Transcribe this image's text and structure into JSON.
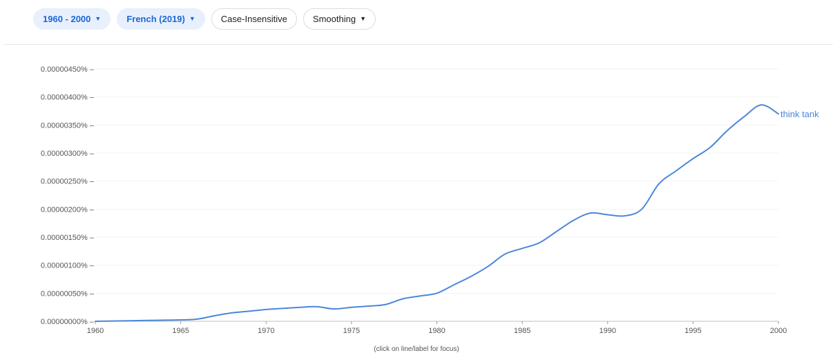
{
  "toolbar": {
    "year_range_label": "1960 - 2000",
    "corpus_label": "French (2019)",
    "case_label": "Case-Insensitive",
    "smoothing_label": "Smoothing"
  },
  "hint": "(click on line/label for focus)",
  "colors": {
    "line": "#4a86d9",
    "chip_fill": "#e8f0fe",
    "chip_text": "#1967d2"
  },
  "chart_data": {
    "type": "line",
    "title": "",
    "xlabel": "",
    "ylabel": "",
    "xlim": [
      1960,
      2000
    ],
    "ylim": [
      0,
      4.5e-06
    ],
    "y_tick_labels": [
      "0.00000000%",
      "0.00000050%",
      "0.00000100%",
      "0.00000150%",
      "0.00000200%",
      "0.00000250%",
      "0.00000300%",
      "0.00000350%",
      "0.00000400%",
      "0.00000450%"
    ],
    "y_tick_values": [
      0,
      5e-07,
      1e-06,
      1.5e-06,
      2e-06,
      2.5e-06,
      3e-06,
      3.5e-06,
      4e-06,
      4.5e-06
    ],
    "x_tick_labels": [
      "1960",
      "1965",
      "1970",
      "1975",
      "1980",
      "1985",
      "1990",
      "1995",
      "2000"
    ],
    "x_tick_values": [
      1960,
      1965,
      1970,
      1975,
      1980,
      1985,
      1990,
      1995,
      2000
    ],
    "grid": true,
    "series": [
      {
        "name": "think tank",
        "x": [
          1960,
          1961,
          1962,
          1963,
          1964,
          1965,
          1966,
          1967,
          1968,
          1969,
          1970,
          1971,
          1972,
          1973,
          1974,
          1975,
          1976,
          1977,
          1978,
          1979,
          1980,
          1981,
          1982,
          1983,
          1984,
          1985,
          1986,
          1987,
          1988,
          1989,
          1990,
          1991,
          1992,
          1993,
          1994,
          1995,
          1996,
          1997,
          1998,
          1999,
          2000
        ],
        "values": [
          0.0,
          5e-09,
          1e-08,
          1.5e-08,
          2e-08,
          2.5e-08,
          4e-08,
          1e-07,
          1.5e-07,
          1.8e-07,
          2.1e-07,
          2.3e-07,
          2.5e-07,
          2.6e-07,
          2.2e-07,
          2.5e-07,
          2.7e-07,
          3e-07,
          4e-07,
          4.5e-07,
          5e-07,
          6.5e-07,
          8e-07,
          9.8e-07,
          1.2e-06,
          1.3e-06,
          1.4e-06,
          1.6e-06,
          1.8e-06,
          1.93e-06,
          1.9e-06,
          1.88e-06,
          2e-06,
          2.45e-06,
          2.68e-06,
          2.9e-06,
          3.1e-06,
          3.4e-06,
          3.65e-06,
          3.86e-06,
          3.7e-06
        ]
      }
    ]
  }
}
